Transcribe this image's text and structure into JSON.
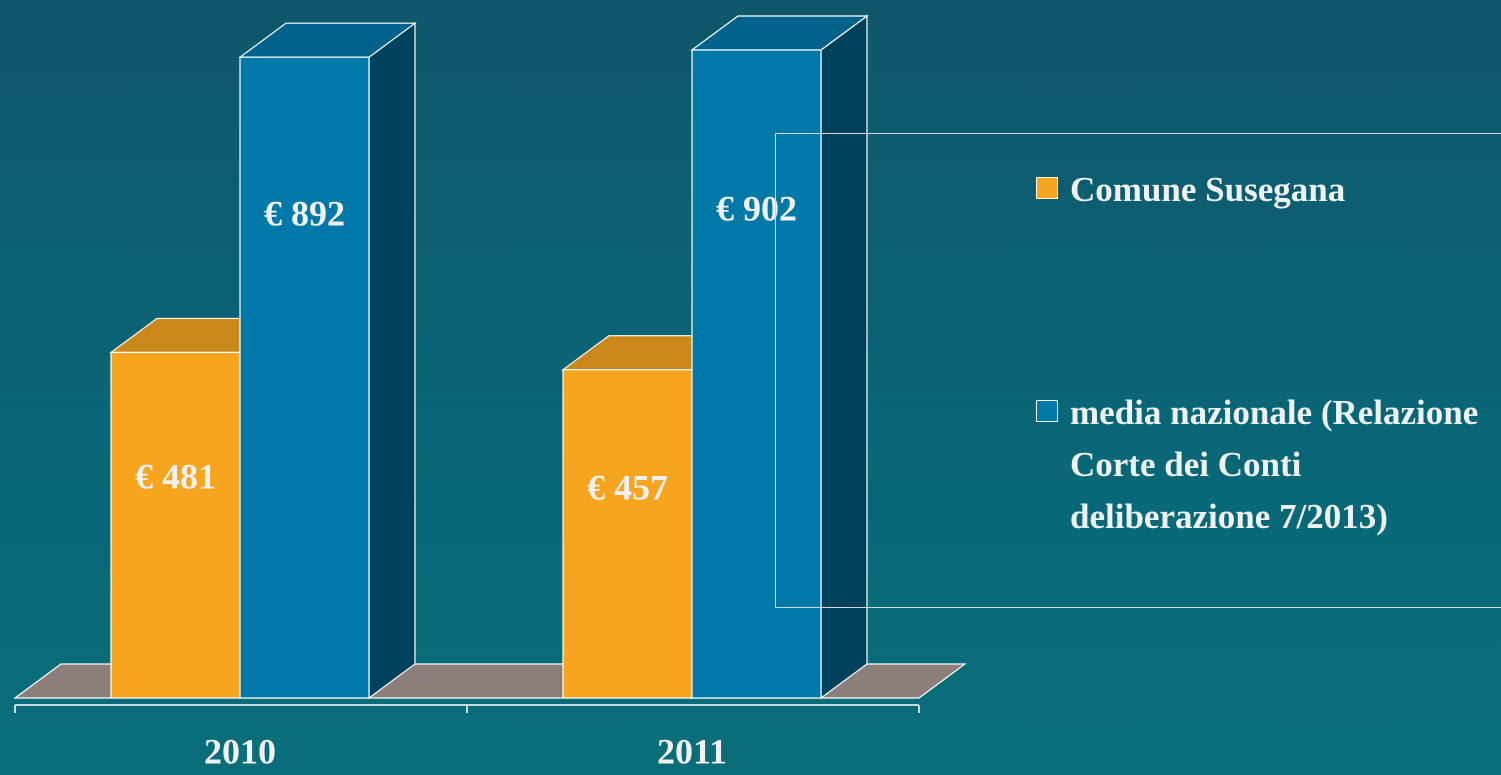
{
  "chart_data": {
    "type": "bar3d",
    "categories": [
      "2010",
      "2011"
    ],
    "series": [
      {
        "name": "Comune Susegana",
        "color": "#f7a51f",
        "values": [
          481,
          457
        ],
        "value_labels": [
          "€ 481",
          "€ 457"
        ]
      },
      {
        "name": "media nazionale (Relazione Corte dei Conti deliberazione 7/2013)",
        "color": "#0078a8",
        "values": [
          892,
          902
        ],
        "value_labels": [
          "€ 892",
          "€ 902"
        ]
      }
    ],
    "legend": "right"
  }
}
